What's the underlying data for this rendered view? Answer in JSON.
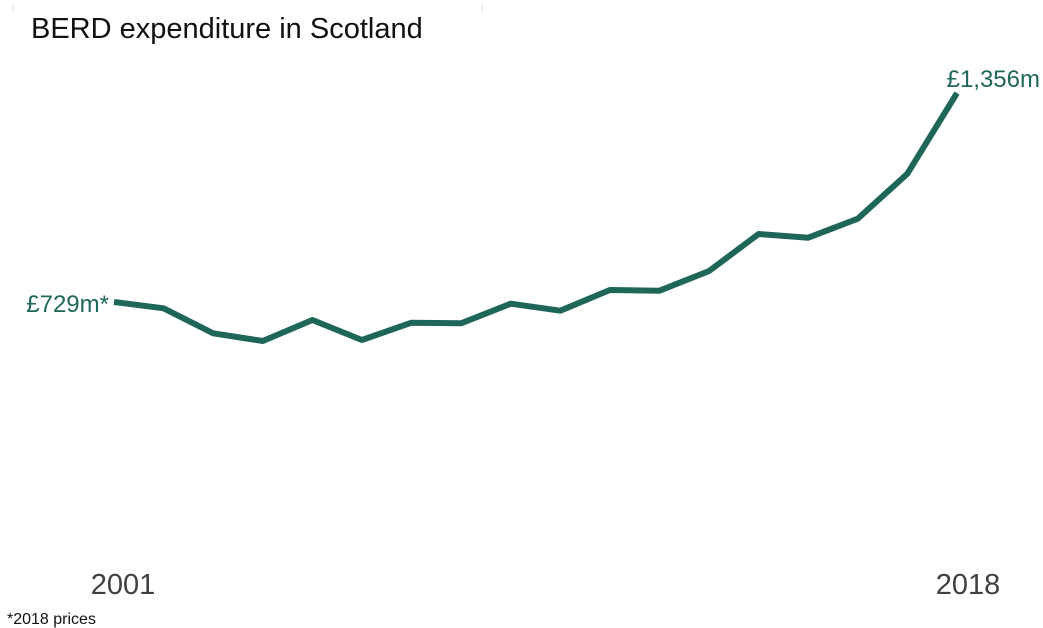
{
  "chart_data": {
    "type": "line",
    "title": "BERD expenditure in Scotland",
    "xlabel": "",
    "ylabel": "",
    "x": [
      2001,
      2002,
      2003,
      2004,
      2005,
      2006,
      2007,
      2008,
      2009,
      2010,
      2011,
      2012,
      2013,
      2014,
      2015,
      2016,
      2017,
      2018
    ],
    "x_tick_labels": [
      "2001",
      "2018"
    ],
    "series": [
      {
        "color": "#1e6658",
        "values": [
          729,
          710,
          635,
          612,
          675,
          615,
          667,
          665,
          724,
          703,
          765,
          763,
          822,
          933,
          922,
          979,
          1114,
          1356
        ]
      }
    ],
    "annotations": [
      {
        "text": "£729m*",
        "year": 2001,
        "value": 729
      },
      {
        "text": "£1,356m",
        "year": 2018,
        "value": 1356
      }
    ],
    "footnote": "*2018 prices",
    "grid": false,
    "legend": "none",
    "axes_visible": false
  }
}
